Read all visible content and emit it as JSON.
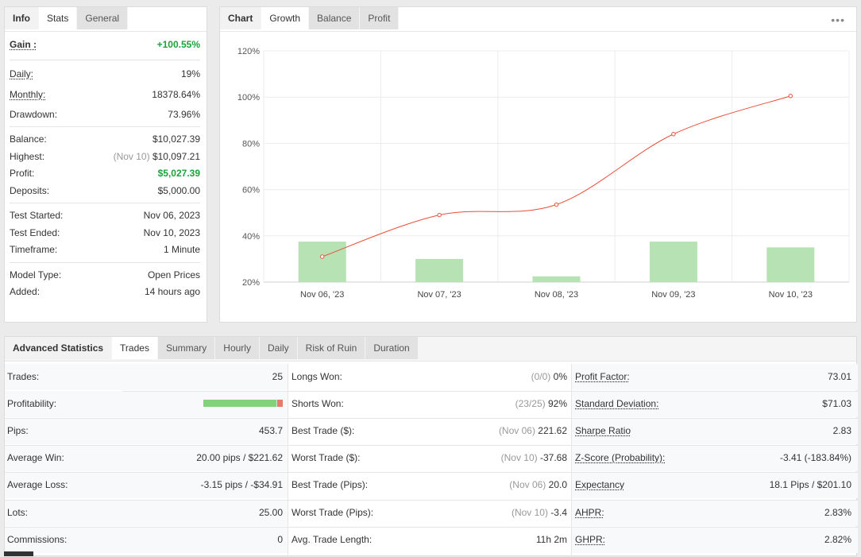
{
  "info": {
    "tabs": [
      "Info",
      "Stats",
      "General"
    ],
    "gain_label": "Gain :",
    "gain_value": "+100.55%",
    "rows1": [
      {
        "label": "Daily:",
        "value": "19%"
      },
      {
        "label": "Monthly:",
        "value": "18378.64%"
      },
      {
        "label": "Drawdown:",
        "value": "73.96%"
      }
    ],
    "rows2": [
      {
        "label": "Balance:",
        "value": "$10,027.39"
      },
      {
        "label": "Highest:",
        "note": "(Nov 10)",
        "value": "$10,097.21"
      },
      {
        "label": "Profit:",
        "value": "$5,027.39"
      },
      {
        "label": "Deposits:",
        "value": "$5,000.00"
      }
    ],
    "rows3": [
      {
        "label": "Test Started:",
        "value": "Nov 06, 2023"
      },
      {
        "label": "Test Ended:",
        "value": "Nov 10, 2023"
      },
      {
        "label": "Timeframe:",
        "value": "1 Minute"
      }
    ],
    "rows4": [
      {
        "label": "Model Type:",
        "value": "Open Prices"
      },
      {
        "label": "Added:",
        "value": "14 hours ago"
      }
    ]
  },
  "chart": {
    "tabs": [
      "Chart",
      "Growth",
      "Balance",
      "Profit"
    ],
    "menu_icon": "dots-menu-icon",
    "accent_line": "#e8503a",
    "bar_color": "#b7e2b3"
  },
  "chart_data": {
    "type": "line",
    "categories": [
      "Nov 06, '23",
      "Nov 07, '23",
      "Nov 08, '23",
      "Nov 09, '23",
      "Nov 10, '23"
    ],
    "ylim": [
      20,
      120
    ],
    "yticks": [
      "120%",
      "100%",
      "80%",
      "60%",
      "40%",
      "20%"
    ],
    "yticks_values": [
      120,
      100,
      80,
      60,
      40,
      20
    ],
    "series": [
      {
        "type": "line",
        "values": [
          31,
          49,
          53.5,
          84,
          100.5
        ]
      },
      {
        "type": "bar",
        "values": [
          37.5,
          30,
          22.5,
          37.5,
          35
        ]
      }
    ],
    "grid": true
  },
  "stats": {
    "tabs": [
      "Advanced Statistics",
      "Trades",
      "Summary",
      "Hourly",
      "Daily",
      "Risk of Ruin",
      "Duration"
    ],
    "profitability": {
      "win_fraction": 0.92
    },
    "col1": [
      {
        "label": "Trades:",
        "value": "25"
      },
      {
        "label": "Profitability:",
        "value": ""
      },
      {
        "label": "Pips:",
        "value": "453.7"
      },
      {
        "label": "Average Win:",
        "value": "20.00 pips / $221.62"
      },
      {
        "label": "Average Loss:",
        "value": "-3.15 pips / -$34.91"
      },
      {
        "label": "Lots:",
        "value": "25.00"
      },
      {
        "label": "Commissions:",
        "value": "0"
      }
    ],
    "col2": [
      {
        "label": "Longs Won:",
        "note": "(0/0)",
        "value": "0%"
      },
      {
        "label": "Shorts Won:",
        "note": "(23/25)",
        "value": "92%"
      },
      {
        "label": "Best Trade ($):",
        "note": "(Nov 06)",
        "value": "221.62"
      },
      {
        "label": "Worst Trade ($):",
        "note": "(Nov 10)",
        "value": "-37.68"
      },
      {
        "label": "Best Trade (Pips):",
        "note": "(Nov 06)",
        "value": "20.0"
      },
      {
        "label": "Worst Trade (Pips):",
        "note": "(Nov 10)",
        "value": "-3.4"
      },
      {
        "label": "Avg. Trade Length:",
        "note": "",
        "value": "11h 2m"
      }
    ],
    "col3": [
      {
        "label": "Profit Factor:",
        "value": "73.01"
      },
      {
        "label": "Standard Deviation:",
        "value": "$71.03"
      },
      {
        "label": "Sharpe Ratio",
        "value": "2.83"
      },
      {
        "label": "Z-Score (Probability):",
        "value": "-3.41 (-183.84%)"
      },
      {
        "label": "Expectancy",
        "value": "18.1 Pips / $201.10"
      },
      {
        "label": "AHPR:",
        "value": "2.83%"
      },
      {
        "label": "GHPR:",
        "value": "2.82%"
      }
    ]
  }
}
